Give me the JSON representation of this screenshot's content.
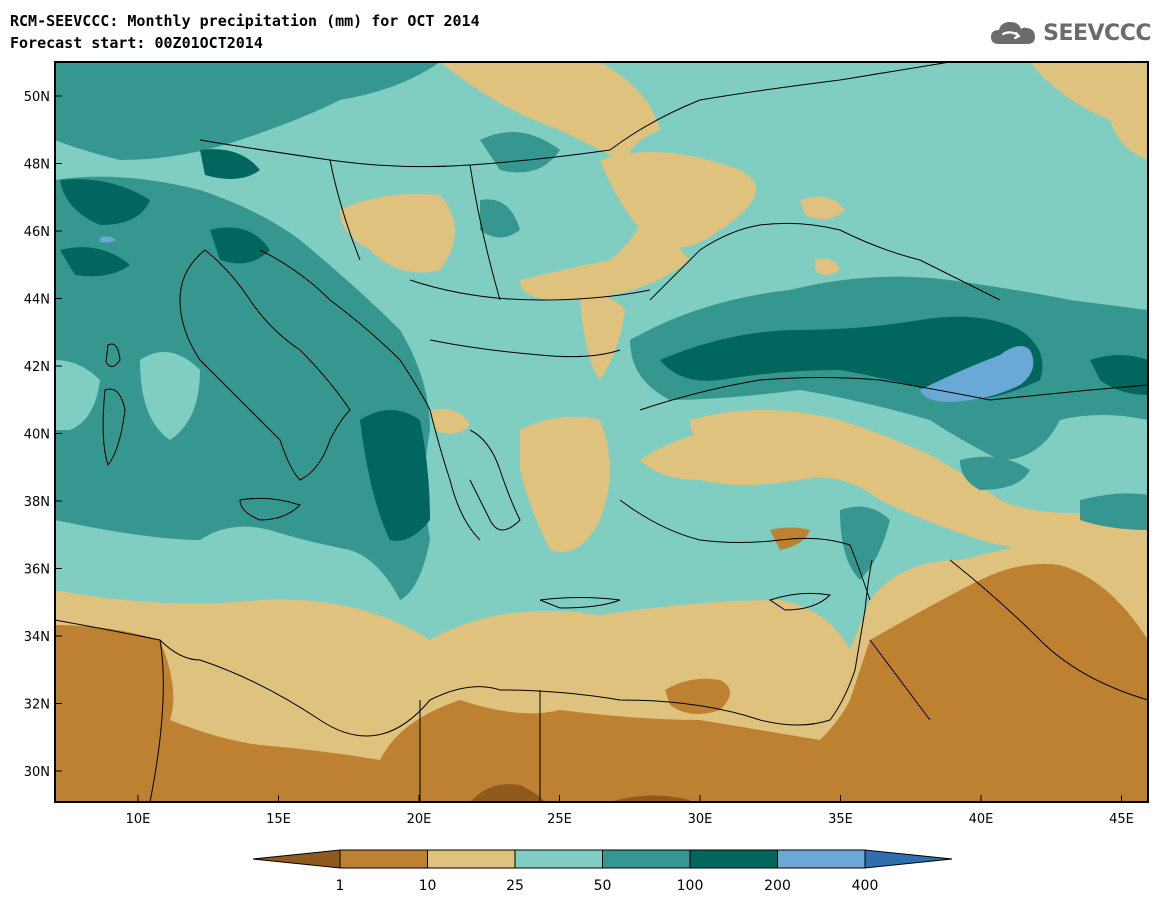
{
  "header": {
    "title_line1": "RCM-SEEVCCC: Monthly precipitation (mm) for OCT 2014",
    "title_line2": "Forecast start: 00Z01OCT2014",
    "logo_text": "SEEVCCC",
    "logo_icon": "cloud-icon"
  },
  "map": {
    "lon_ticks": [
      "10E",
      "15E",
      "20E",
      "25E",
      "30E",
      "35E",
      "40E",
      "45E"
    ],
    "lat_ticks": [
      "50N",
      "48N",
      "46N",
      "44N",
      "42N",
      "40N",
      "38N",
      "36N",
      "34N",
      "32N",
      "30N"
    ]
  },
  "colorbar": {
    "labels": [
      "1",
      "10",
      "25",
      "50",
      "100",
      "200",
      "400"
    ],
    "colors": [
      "#8f5a1c",
      "#bd8131",
      "#dfc27d",
      "#80cdc1",
      "#35978f",
      "#01665e",
      "#6aa9d6",
      "#2f6fb0"
    ]
  },
  "palette": {
    "c_1_10": "#bd8131",
    "c_10_25": "#dfc27d",
    "c_25_50": "#80cdc1",
    "c_50_100": "#35978f",
    "c_100_200": "#01665e",
    "c_200_400": "#6aa9d6",
    "c_lt_1": "#8f5a1c"
  }
}
